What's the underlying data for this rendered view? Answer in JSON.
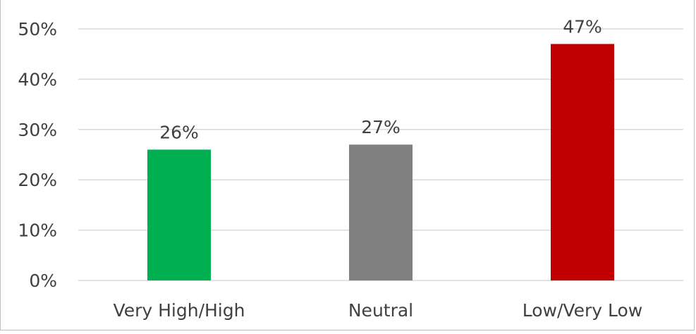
{
  "chart_data": {
    "type": "bar",
    "title": "",
    "xlabel": "",
    "ylabel": "",
    "categories": [
      "Very High/High",
      "Neutral",
      "Low/Very Low"
    ],
    "values": [
      26,
      27,
      47
    ],
    "data_labels": [
      "26%",
      "27%",
      "47%"
    ],
    "colors": [
      "#00b050",
      "#808080",
      "#c00000"
    ],
    "ylim": [
      0,
      50
    ],
    "yticks": [
      0,
      10,
      20,
      30,
      40,
      50
    ],
    "ytick_labels": [
      "0%",
      "10%",
      "20%",
      "30%",
      "40%",
      "50%"
    ],
    "grid": true,
    "gridline_color": "#d9d9d9",
    "axis_line_color": "#d9d9d9",
    "text_color": "#404040"
  }
}
